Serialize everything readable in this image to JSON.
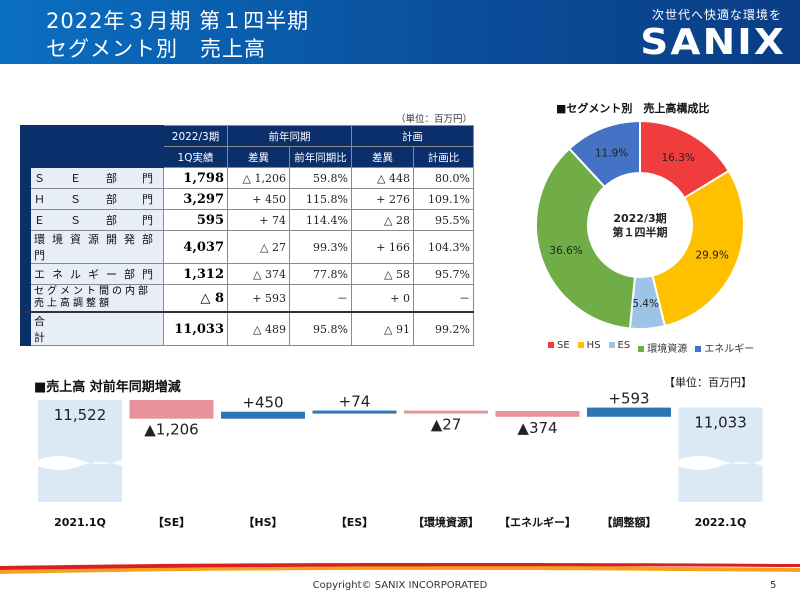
{
  "header": {
    "title_line1": "2022年３月期 第１四半期",
    "title_line2": "セグメント別　売上高",
    "slogan": "次世代へ快適な環境を",
    "logo": "SANIX",
    "brand_color": "#0b4f9c"
  },
  "table": {
    "unit": "（単位：百万円）",
    "header_row1": [
      "2022/3期",
      "前年同期",
      "計画"
    ],
    "header_row2": [
      "1Q実績",
      "差異",
      "前年同期比",
      "差異",
      "計画比"
    ],
    "rows": [
      {
        "name": "Ｓ　Ｅ　部　門",
        "actual": "1,798",
        "yoy_diff": "△ 1,206",
        "yoy_ratio": "59.8%",
        "plan_diff": "△ 448",
        "plan_ratio": "80.0%"
      },
      {
        "name": "Ｈ　Ｓ　部　門",
        "actual": "3,297",
        "yoy_diff": "+ 450",
        "yoy_ratio": "115.8%",
        "plan_diff": "+ 276",
        "plan_ratio": "109.1%"
      },
      {
        "name": "Ｅ　Ｓ　部　門",
        "actual": "595",
        "yoy_diff": "+ 74",
        "yoy_ratio": "114.4%",
        "plan_diff": "△ 28",
        "plan_ratio": "95.5%"
      },
      {
        "name": "環境資源開発部門",
        "actual": "4,037",
        "yoy_diff": "△ 27",
        "yoy_ratio": "99.3%",
        "plan_diff": "+ 166",
        "plan_ratio": "104.3%"
      },
      {
        "name": "エネルギー部門",
        "actual": "1,312",
        "yoy_diff": "△ 374",
        "yoy_ratio": "77.8%",
        "plan_diff": "△ 58",
        "plan_ratio": "95.7%"
      },
      {
        "name": "セグメント間の内部売上高調整額",
        "actual": "△ 8",
        "yoy_diff": "+ 593",
        "yoy_ratio": "－",
        "plan_diff": "+ 0",
        "plan_ratio": "－"
      },
      {
        "name": "合　　　　　　計",
        "actual": "11,033",
        "yoy_diff": "△ 489",
        "yoy_ratio": "95.8%",
        "plan_diff": "△ 91",
        "plan_ratio": "99.2%"
      }
    ]
  },
  "chart_data": [
    {
      "type": "pie",
      "title": "■セグメント別　売上高構成比",
      "center_label": [
        "2022/3期",
        "第１四半期"
      ],
      "categories": [
        "SE",
        "HS",
        "ES",
        "環境資源",
        "エネルギー"
      ],
      "values": [
        16.3,
        29.9,
        5.4,
        36.6,
        11.9
      ],
      "labels": [
        "16.3%",
        "29.9%",
        "5.4%",
        "36.6%",
        "11.9%"
      ],
      "colors": [
        "#f03c3c",
        "#ffc000",
        "#9dc3e6",
        "#70ad47",
        "#4472c4"
      ],
      "legend_position": "bottom"
    },
    {
      "type": "bar",
      "subtype": "waterfall",
      "title": "■売上高 対前年同期増減",
      "unit": "【単位：百万円】",
      "categories": [
        "2021.1Q",
        "【SE】",
        "【HS】",
        "【ES】",
        "【環境資源】",
        "【エネルギー】",
        "【調整額】",
        "2022.1Q"
      ],
      "values": [
        11522,
        -1206,
        450,
        74,
        -27,
        -374,
        593,
        11033
      ],
      "labels": [
        "11,522",
        "▲1,206",
        "+450",
        "+74",
        "▲27",
        "▲374",
        "+593",
        "11,033"
      ],
      "colors": {
        "total": "#dbe8f5",
        "decrease": "#e8939c",
        "increase": "#2e75b6"
      }
    }
  ],
  "footer": {
    "copyright": "Copyright©  SANIX INCORPORATED",
    "page": "5"
  }
}
